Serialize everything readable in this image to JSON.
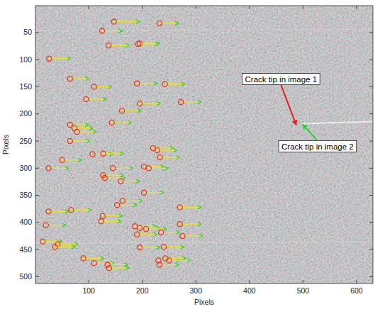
{
  "chart_data": {
    "type": "quiver",
    "xlabel": "Pixels",
    "ylabel": "Pixels",
    "xlim": [
      0.5,
      630.5
    ],
    "ylim": [
      0.5,
      512.5
    ],
    "xticks": [
      100,
      200,
      300,
      400,
      500,
      600
    ],
    "yticks": [
      50,
      100,
      150,
      200,
      250,
      300,
      350,
      400,
      450,
      500
    ],
    "x": [
      147,
      232,
      125,
      195,
      192,
      137,
      26,
      65,
      110,
      190,
      242,
      95,
      272,
      195,
      162,
      65,
      73,
      78,
      65,
      143,
      220,
      228,
      233,
      107,
      127,
      50,
      25,
      145,
      203,
      212,
      127,
      130,
      160,
      203,
      163,
      153,
      25,
      67,
      270,
      126,
      123,
      186,
      195,
      207,
      270,
      20,
      235,
      275,
      190,
      14,
      42,
      37,
      195,
      240,
      90,
      110,
      135,
      138,
      230,
      243,
      232,
      250
    ],
    "y": [
      30,
      33,
      47,
      70,
      71,
      74,
      98,
      135,
      150,
      144,
      145,
      173,
      178,
      181,
      194,
      220,
      226,
      233,
      250,
      216,
      263,
      267,
      280,
      274,
      273,
      285,
      300,
      300,
      297,
      300,
      313,
      318,
      324,
      345,
      360,
      368,
      380,
      377,
      372,
      388,
      398,
      407,
      410,
      412,
      403,
      405,
      418,
      425,
      422,
      435,
      440,
      445,
      446,
      445,
      466,
      475,
      478,
      484,
      470,
      466,
      478,
      470
    ],
    "u": [
      48,
      36,
      38,
      38,
      38,
      39,
      40,
      35,
      33,
      38,
      38,
      38,
      38,
      39,
      36,
      35,
      35,
      36,
      37,
      37,
      38,
      37,
      37,
      38,
      38,
      37,
      38,
      38,
      37,
      36,
      38,
      38,
      35,
      37,
      37,
      37,
      37,
      38,
      40,
      37,
      37,
      39,
      37,
      38,
      40,
      37,
      35,
      38,
      38,
      36,
      38,
      38,
      38,
      38,
      38,
      38,
      38,
      37,
      40,
      38,
      36,
      40
    ],
    "annotations": [
      {
        "text": "Crack tip in image 1",
        "x": 488,
        "y": 222,
        "color": "#e8201f"
      },
      {
        "text": "Crack tip in image 2",
        "x": 498,
        "y": 218,
        "color": "#2fd02f"
      }
    ]
  }
}
